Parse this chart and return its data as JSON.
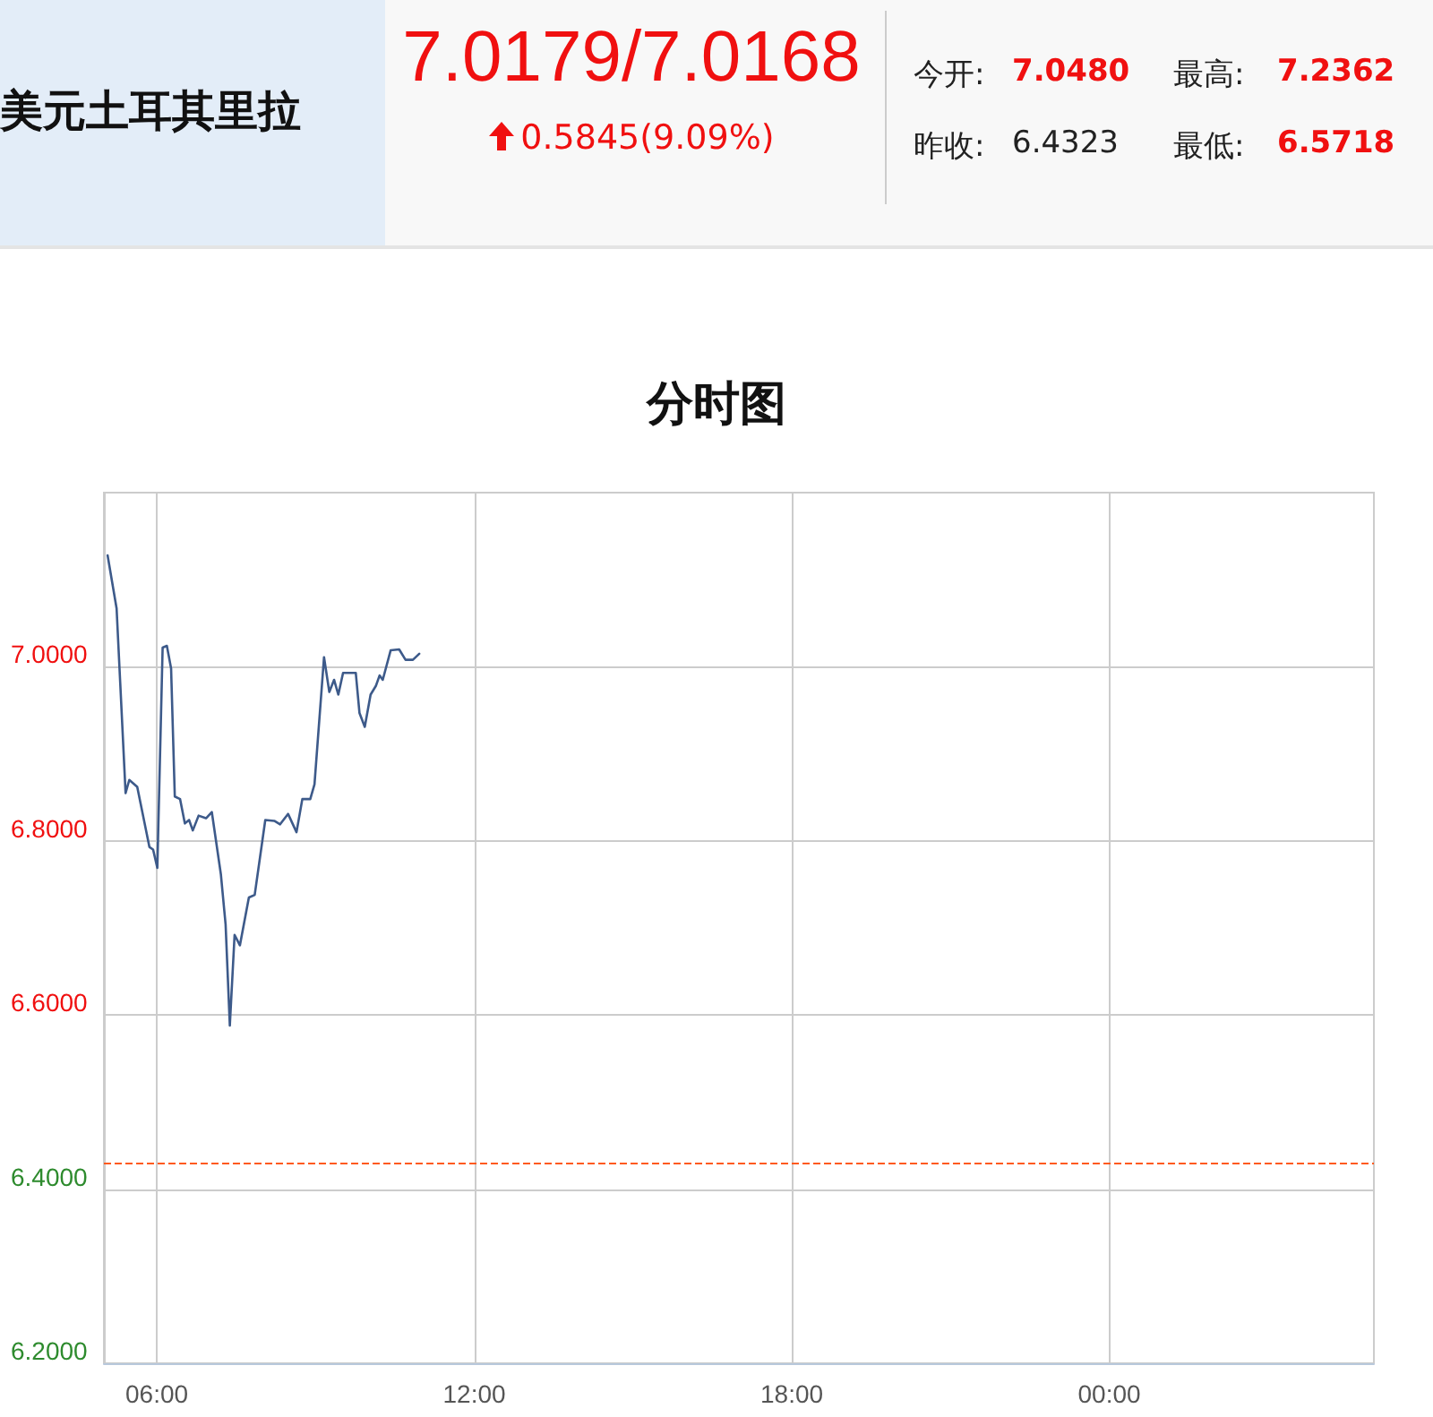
{
  "chart_data": {
    "type": "line",
    "title": "美元土耳其里拉",
    "subtitle": "分时图",
    "annotations": [
      "7.0179/7.0168",
      "0.5845(9.09%)",
      "今开:",
      "7.0480",
      "最高:",
      "7.2362",
      "昨收:",
      "6.4323",
      "最低:",
      "6.5718"
    ],
    "series": [
      {
        "color": "#3d5a8a",
        "x": [
          5.07,
          5.24,
          5.41,
          5.48,
          5.63,
          5.86,
          5.93,
          6.01,
          6.11,
          6.19,
          6.27,
          6.34,
          6.44,
          6.53,
          6.61,
          6.68,
          6.79,
          6.93,
          7.04,
          7.21,
          7.3,
          7.38,
          7.47,
          7.57,
          7.74,
          7.85,
          8.05,
          8.22,
          8.33,
          8.48,
          8.64,
          8.75,
          8.9,
          8.98,
          9.06,
          9.16,
          9.26,
          9.35,
          9.43,
          9.52,
          9.76,
          9.83,
          9.93,
          10.04,
          10.14,
          10.21,
          10.27,
          10.42,
          10.58,
          10.7,
          10.84,
          10.96
        ],
        "values": [
          7.128,
          7.067,
          6.855,
          6.87,
          6.862,
          6.793,
          6.79,
          6.769,
          7.022,
          7.024,
          6.998,
          6.851,
          6.848,
          6.82,
          6.824,
          6.812,
          6.829,
          6.826,
          6.833,
          6.762,
          6.704,
          6.588,
          6.692,
          6.68,
          6.735,
          6.738,
          6.824,
          6.823,
          6.819,
          6.831,
          6.81,
          6.848,
          6.848,
          6.865,
          6.93,
          7.011,
          6.971,
          6.985,
          6.968,
          6.993,
          6.993,
          6.947,
          6.931,
          6.968,
          6.978,
          6.99,
          6.985,
          7.019,
          7.02,
          7.008,
          7.008,
          7.015
        ]
      }
    ],
    "xlim": [
      5,
      29
    ],
    "xticks": [
      {
        "value": 6,
        "label": "06:00"
      },
      {
        "value": 12,
        "label": "12:00"
      },
      {
        "value": 18,
        "label": "18:00"
      },
      {
        "value": 24,
        "label": "00:00"
      }
    ],
    "ylim": [
      6.2,
      7.2
    ],
    "yticks": [
      {
        "value": 6.2,
        "label": "6.2000"
      },
      {
        "value": 6.4,
        "label": "6.4000"
      },
      {
        "value": 6.6,
        "label": "6.6000"
      },
      {
        "value": 6.8,
        "label": "6.8000"
      },
      {
        "value": 7.0,
        "label": "7.0000"
      }
    ],
    "ref_lines": [
      {
        "axis": "y",
        "value": 6.4323,
        "color": "#ff5a1f",
        "line_style": "dashed"
      }
    ],
    "grid": true,
    "marker": "none",
    "line_style": "solid"
  }
}
